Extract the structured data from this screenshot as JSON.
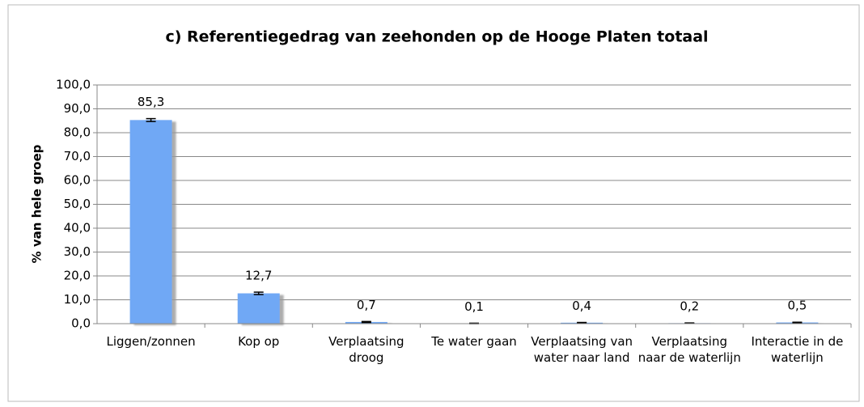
{
  "chart_data": {
    "type": "bar",
    "title": "c) Referentiegedrag van zeehonden op de Hooge Platen totaal",
    "y_label": "% van hele groep",
    "categories": [
      "Liggen/zonnen",
      "Kop op",
      "Verplaatsing droog",
      "Te water gaan",
      "Verplaatsing van water naar land",
      "Verplaatsing naar de waterlijn",
      "Interactie in de waterlijn"
    ],
    "values": [
      85.3,
      12.7,
      0.7,
      0.1,
      0.4,
      0.2,
      0.5
    ],
    "value_labels": [
      "85,3",
      "12,7",
      "0,7",
      "0,1",
      "0,4",
      "0,2",
      "0,5"
    ],
    "errors": [
      0.6,
      0.5,
      0.2,
      0.1,
      0.1,
      0.1,
      0.1
    ],
    "color": "#6fa8f5",
    "ylim": [
      0,
      100
    ],
    "yticks": [
      {
        "value": 0,
        "label": "0,0"
      },
      {
        "value": 10,
        "label": "10,0"
      },
      {
        "value": 20,
        "label": "20,0"
      },
      {
        "value": 30,
        "label": "30,0"
      },
      {
        "value": 40,
        "label": "40,0"
      },
      {
        "value": 50,
        "label": "50,0"
      },
      {
        "value": 60,
        "label": "60,0"
      },
      {
        "value": 70,
        "label": "70,0"
      },
      {
        "value": 80,
        "label": "80,0"
      },
      {
        "value": 90,
        "label": "90,0"
      },
      {
        "value": 100,
        "label": "100,0"
      }
    ],
    "grid": true
  }
}
